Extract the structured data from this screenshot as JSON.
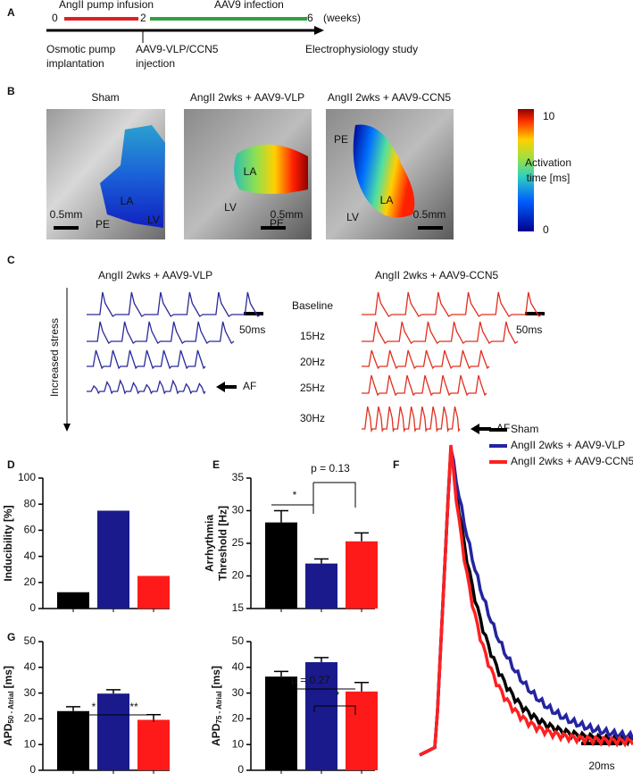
{
  "panel_labels": [
    "A",
    "B",
    "C",
    "D",
    "E",
    "F",
    "G"
  ],
  "timeline": {
    "start": "0",
    "mid": "2",
    "end": "6",
    "unit": "(weeks)",
    "phase1": "AngII pump infusion",
    "phase2": "AAV9 infection",
    "event1": [
      "Osmotic pump",
      "implantation"
    ],
    "event2": [
      "AAV9-VLP/CCN5",
      "injection"
    ],
    "event3": "Electrophysiology study"
  },
  "maps": {
    "titles": [
      "Sham",
      "AngII 2wks + AAV9-VLP",
      "AngII 2wks + AAV9-CCN5"
    ],
    "labels": [
      [
        "LA",
        "PE",
        "LV",
        "0.5mm"
      ],
      [
        "LA",
        "LV",
        "PE",
        "0.5mm"
      ],
      [
        "PE",
        "LA",
        "LV",
        "0.5mm"
      ]
    ],
    "colorbar": {
      "max": "10",
      "min": "0",
      "label": [
        "Activation",
        "time [ms]"
      ]
    }
  },
  "traces": {
    "groups": [
      "AngII 2wks + AAV9-VLP",
      "AngII 2wks + AAV9-CCN5"
    ],
    "stages": [
      "Baseline",
      "15Hz",
      "20Hz",
      "25Hz",
      "30Hz"
    ],
    "scale": "50ms",
    "af": "AF",
    "stress": "Increased stress"
  },
  "ap": {
    "legend": [
      "Sham",
      "AngII 2wks + AAV9-VLP",
      "AngII 2wks + AAV9-CCN5"
    ],
    "colors": [
      "#000000",
      "#2424a0",
      "#ff2020"
    ],
    "scale": "20ms"
  },
  "chart_data": [
    {
      "type": "bar",
      "ylabel": [
        "Inducibility [%]"
      ],
      "categories": [
        null,
        null,
        null
      ],
      "values": [
        12.5,
        75,
        25
      ],
      "colors": [
        "#000000",
        "#1a1a8c",
        "#ff1a1a"
      ],
      "ylim": [
        0,
        100
      ],
      "yticks": [
        0,
        20,
        40,
        60,
        80,
        100
      ]
    },
    {
      "type": "bar",
      "ylabel": [
        "Arrhythmia",
        "Threshold [Hz]"
      ],
      "categories": [
        null,
        null,
        null
      ],
      "values": [
        28.2,
        21.9,
        25.3
      ],
      "errors": [
        1.8,
        0.7,
        1.3
      ],
      "colors": [
        "#000000",
        "#1a1a8c",
        "#ff1a1a"
      ],
      "ylim": [
        15,
        35
      ],
      "yticks": [
        15,
        20,
        25,
        30,
        35
      ],
      "annotations": [
        "*",
        "p = 0.13"
      ]
    },
    {
      "type": "bar",
      "ylabel": {
        "main": "APD",
        "sub": "50 - Atrial",
        "unit": "[ms]"
      },
      "categories": [
        null,
        null,
        null
      ],
      "values": [
        23,
        29.8,
        19.6
      ],
      "errors": [
        1.7,
        1.5,
        2
      ],
      "colors": [
        "#000000",
        "#1a1a8c",
        "#ff1a1a"
      ],
      "ylim": [
        0,
        50
      ],
      "yticks": [
        0,
        10,
        20,
        30,
        40,
        50
      ],
      "annotations": [
        "*",
        "**"
      ]
    },
    {
      "type": "bar",
      "ylabel": {
        "main": "APD",
        "sub": "75 - Atrial",
        "unit": "[ms]"
      },
      "categories": [
        null,
        null,
        null
      ],
      "values": [
        36.4,
        42,
        30.6
      ],
      "errors": [
        2,
        1.8,
        3.5
      ],
      "colors": [
        "#000000",
        "#1a1a8c",
        "#ff1a1a"
      ],
      "ylim": [
        0,
        50
      ],
      "yticks": [
        0,
        10,
        20,
        30,
        40,
        50
      ],
      "annotations": [
        "p = 0.27",
        "*"
      ]
    }
  ]
}
